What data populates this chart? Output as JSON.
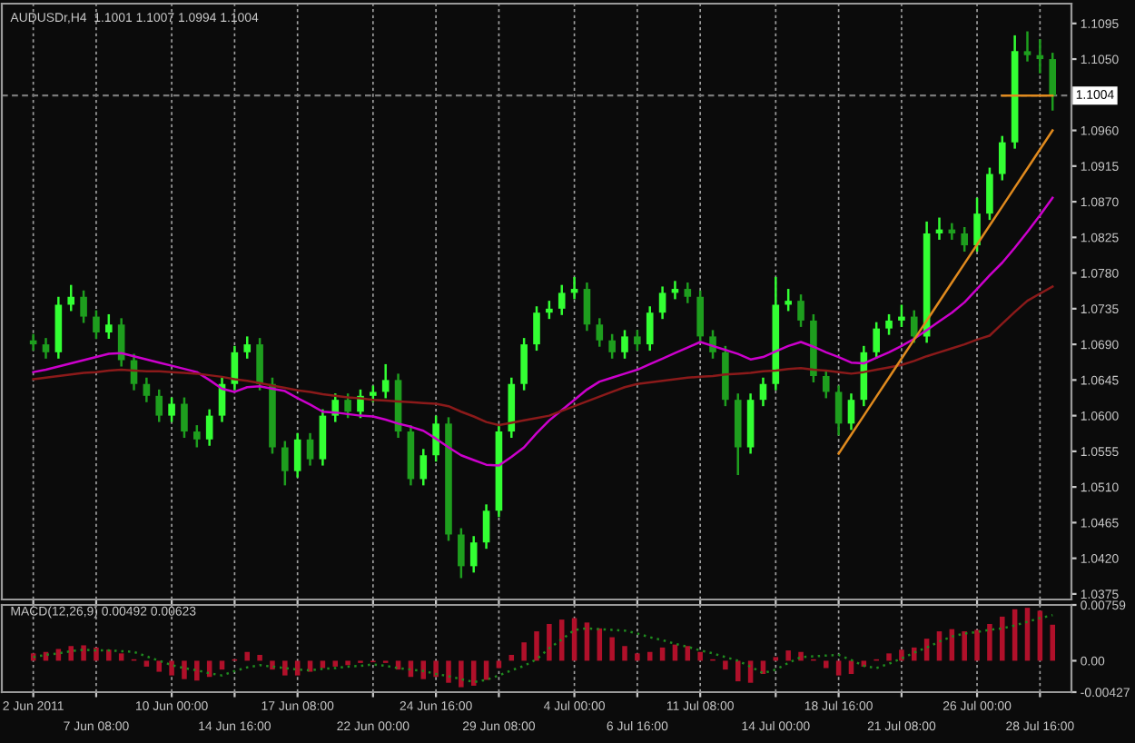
{
  "chart_data": [
    {
      "type": "candlestick",
      "title": "AUDUSDr,H4  1.1001 1.1007 1.0994 1.1004",
      "categories": [
        null,
        null,
        null,
        null,
        null,
        null,
        null,
        null,
        null,
        null,
        null,
        null,
        null,
        null,
        null,
        null,
        null,
        null,
        null,
        null,
        null,
        null,
        null,
        null,
        null,
        null,
        null,
        null,
        null,
        null,
        null,
        null,
        null,
        null,
        null,
        null,
        null,
        null,
        null,
        null,
        null,
        null,
        null,
        null,
        null,
        null,
        null,
        null,
        null,
        null,
        null,
        null,
        null,
        null,
        null,
        null,
        null,
        null,
        null,
        null,
        null,
        null,
        null,
        null,
        null,
        null,
        null,
        null,
        null,
        null,
        null,
        null,
        null,
        null,
        null,
        null,
        null,
        null,
        null,
        null,
        null,
        null
      ],
      "ohlc": [
        [
          1.0695,
          1.0703,
          1.0682,
          1.069
        ],
        [
          1.069,
          1.0698,
          1.0672,
          1.068
        ],
        [
          1.068,
          1.075,
          1.0672,
          1.074
        ],
        [
          1.074,
          1.0765,
          1.0732,
          1.075
        ],
        [
          1.075,
          1.0758,
          1.0717,
          1.0725
        ],
        [
          1.0725,
          1.0733,
          1.0697,
          1.0705
        ],
        [
          1.0705,
          1.0728,
          1.0697,
          1.0715
        ],
        [
          1.0715,
          1.0723,
          1.0662,
          1.067
        ],
        [
          1.067,
          1.0678,
          1.0632,
          1.064
        ],
        [
          1.064,
          1.0648,
          1.0617,
          1.0625
        ],
        [
          1.0625,
          1.0633,
          1.0592,
          1.06
        ],
        [
          1.06,
          1.0623,
          1.0592,
          1.0615
        ],
        [
          1.0615,
          1.0623,
          1.0572,
          1.058
        ],
        [
          1.058,
          1.0588,
          1.056,
          1.057
        ],
        [
          1.057,
          1.0608,
          1.0562,
          1.06
        ],
        [
          1.06,
          1.0648,
          1.0592,
          1.064
        ],
        [
          1.064,
          1.0688,
          1.0632,
          1.068
        ],
        [
          1.068,
          1.07,
          1.0672,
          1.069
        ],
        [
          1.069,
          1.0698,
          1.0632,
          1.064
        ],
        [
          1.064,
          1.0648,
          1.0552,
          1.056
        ],
        [
          1.056,
          1.0568,
          1.0512,
          1.053
        ],
        [
          1.053,
          1.0578,
          1.0522,
          1.057
        ],
        [
          1.057,
          1.0578,
          1.0537,
          1.0545
        ],
        [
          1.0545,
          1.0608,
          1.0537,
          1.06
        ],
        [
          1.06,
          1.0628,
          1.0592,
          1.062
        ],
        [
          1.062,
          1.0628,
          1.0597,
          1.0605
        ],
        [
          1.0605,
          1.0633,
          1.0597,
          1.0625
        ],
        [
          1.0625,
          1.0638,
          1.0617,
          1.063
        ],
        [
          1.063,
          1.0665,
          1.0622,
          1.0645
        ],
        [
          1.0645,
          1.0653,
          1.0572,
          1.058
        ],
        [
          1.058,
          1.0588,
          1.0512,
          1.052
        ],
        [
          1.052,
          1.0558,
          1.0512,
          1.055
        ],
        [
          1.055,
          1.06,
          1.0542,
          1.059
        ],
        [
          1.059,
          1.0598,
          1.0442,
          1.045
        ],
        [
          1.045,
          1.0458,
          1.0395,
          1.041
        ],
        [
          1.041,
          1.0448,
          1.0402,
          1.044
        ],
        [
          1.044,
          1.0488,
          1.0432,
          1.048
        ],
        [
          1.048,
          1.0588,
          1.0472,
          1.058
        ],
        [
          1.058,
          1.0648,
          1.0572,
          1.064
        ],
        [
          1.064,
          1.0698,
          1.0632,
          1.069
        ],
        [
          1.069,
          1.0738,
          1.0682,
          1.073
        ],
        [
          1.073,
          1.0745,
          1.0722,
          1.0735
        ],
        [
          1.0735,
          1.0765,
          1.0727,
          1.0755
        ],
        [
          1.0755,
          1.0775,
          1.0747,
          1.076
        ],
        [
          1.076,
          1.0768,
          1.0707,
          1.0715
        ],
        [
          1.0715,
          1.0723,
          1.0687,
          1.0695
        ],
        [
          1.0695,
          1.0703,
          1.0672,
          1.068
        ],
        [
          1.068,
          1.0708,
          1.0672,
          1.07
        ],
        [
          1.07,
          1.0708,
          1.0682,
          1.069
        ],
        [
          1.069,
          1.0738,
          1.0682,
          1.073
        ],
        [
          1.073,
          1.0763,
          1.0722,
          1.0755
        ],
        [
          1.0755,
          1.077,
          1.0747,
          1.076
        ],
        [
          1.076,
          1.0768,
          1.0742,
          1.075
        ],
        [
          1.075,
          1.0758,
          1.0692,
          1.07
        ],
        [
          1.07,
          1.0708,
          1.0672,
          1.068
        ],
        [
          1.068,
          1.0688,
          1.0612,
          1.062
        ],
        [
          1.062,
          1.0628,
          1.0525,
          1.056
        ],
        [
          1.056,
          1.0628,
          1.0552,
          1.062
        ],
        [
          1.062,
          1.0648,
          1.0612,
          1.064
        ],
        [
          1.064,
          1.0775,
          1.0632,
          1.074
        ],
        [
          1.074,
          1.076,
          1.0732,
          1.0745
        ],
        [
          1.0745,
          1.0753,
          1.0712,
          1.072
        ],
        [
          1.072,
          1.0728,
          1.0642,
          1.065
        ],
        [
          1.065,
          1.0658,
          1.0622,
          1.063
        ],
        [
          1.063,
          1.0638,
          1.0575,
          1.059
        ],
        [
          1.059,
          1.0628,
          1.0582,
          1.062
        ],
        [
          1.062,
          1.0688,
          1.0612,
          1.068
        ],
        [
          1.068,
          1.0718,
          1.0672,
          1.071
        ],
        [
          1.071,
          1.0728,
          1.0702,
          1.072
        ],
        [
          1.072,
          1.074,
          1.0712,
          1.0725
        ],
        [
          1.0725,
          1.0733,
          1.0692,
          1.07
        ],
        [
          1.07,
          1.0845,
          1.0692,
          1.083
        ],
        [
          1.083,
          1.085,
          1.0822,
          1.0835
        ],
        [
          1.0835,
          1.0843,
          1.0822,
          1.083
        ],
        [
          1.083,
          1.0838,
          1.0807,
          1.0815
        ],
        [
          1.0815,
          1.0875,
          1.0807,
          1.0855
        ],
        [
          1.0855,
          1.0913,
          1.0847,
          1.0905
        ],
        [
          1.0905,
          1.0953,
          1.0897,
          1.0945
        ],
        [
          1.0945,
          1.108,
          1.0937,
          1.106
        ],
        [
          1.106,
          1.1085,
          1.1047,
          1.1055
        ],
        [
          1.1055,
          1.1075,
          1.1032,
          1.105
        ],
        [
          1.105,
          1.1058,
          1.0985,
          1.1004
        ]
      ],
      "colors": [
        "#1e9e1e",
        "#1e9e1e",
        "#33ff33",
        "#33ff33",
        "#1e9e1e",
        "#1e9e1e",
        "#33ff33",
        "#1e9e1e",
        "#1e9e1e",
        "#1e9e1e",
        "#1e9e1e",
        "#33ff33",
        "#1e9e1e",
        "#1e9e1e",
        "#33ff33",
        "#33ff33",
        "#33ff33",
        "#33ff33",
        "#1e9e1e",
        "#1e9e1e",
        "#1e9e1e",
        "#33ff33",
        "#1e9e1e",
        "#33ff33",
        "#33ff33",
        "#1e9e1e",
        "#33ff33",
        "#33ff33",
        "#33ff33",
        "#1e9e1e",
        "#1e9e1e",
        "#33ff33",
        "#33ff33",
        "#1e9e1e",
        "#1e9e1e",
        "#33ff33",
        "#33ff33",
        "#33ff33",
        "#33ff33",
        "#33ff33",
        "#33ff33",
        "#33ff33",
        "#33ff33",
        "#33ff33",
        "#1e9e1e",
        "#1e9e1e",
        "#1e9e1e",
        "#33ff33",
        "#1e9e1e",
        "#33ff33",
        "#33ff33",
        "#33ff33",
        "#1e9e1e",
        "#1e9e1e",
        "#1e9e1e",
        "#1e9e1e",
        "#1e9e1e",
        "#33ff33",
        "#33ff33",
        "#33ff33",
        "#33ff33",
        "#1e9e1e",
        "#1e9e1e",
        "#1e9e1e",
        "#1e9e1e",
        "#33ff33",
        "#33ff33",
        "#33ff33",
        "#33ff33",
        "#33ff33",
        "#1e9e1e",
        "#33ff33",
        "#33ff33",
        "#1e9e1e",
        "#1e9e1e",
        "#33ff33",
        "#33ff33",
        "#33ff33",
        "#33ff33",
        "#1e9e1e",
        "#1e9e1e",
        "#1e9e1e"
      ],
      "series": [
        {
          "type": "line",
          "color": "#cc00cc",
          "values": [
            1.0655,
            1.0658,
            1.0662,
            1.0666,
            1.067,
            1.0674,
            1.0678,
            1.0679,
            1.0675,
            1.0671,
            1.0667,
            1.0663,
            1.0659,
            1.0655,
            1.0645,
            1.0634,
            1.063,
            1.0636,
            1.0637,
            1.0634,
            1.0631,
            1.0622,
            1.0614,
            1.0605,
            1.0604,
            1.0602,
            1.06,
            1.0599,
            1.0595,
            1.059,
            1.0586,
            1.0581,
            1.0571,
            1.056,
            1.055,
            1.0544,
            1.0538,
            1.0537,
            1.0548,
            1.056,
            1.0578,
            1.0594,
            1.0607,
            1.062,
            1.0633,
            1.0643,
            1.0648,
            1.0653,
            1.0658,
            1.0665,
            1.0672,
            1.0679,
            1.0686,
            1.0693,
            1.0688,
            1.0683,
            1.0678,
            1.0671,
            1.0674,
            1.0681,
            1.0688,
            1.0693,
            1.0687,
            1.068,
            1.0674,
            1.0667,
            1.0666,
            1.0673,
            1.068,
            1.0688,
            1.0697,
            1.0708,
            1.0719,
            1.073,
            1.0743,
            1.076,
            1.0777,
            1.0793,
            1.0812,
            1.0832,
            1.0853,
            1.0875
          ]
        },
        {
          "type": "line",
          "color": "#8b1a1a",
          "values": [
            1.0646,
            1.0648,
            1.065,
            1.0652,
            1.0654,
            1.0655,
            1.0657,
            1.0658,
            1.0657,
            1.0656,
            1.0656,
            1.0655,
            1.0654,
            1.0653,
            1.0651,
            1.0649,
            1.0646,
            1.0644,
            1.0641,
            1.0638,
            1.0635,
            1.0632,
            1.063,
            1.0627,
            1.0625,
            1.0623,
            1.0622,
            1.062,
            1.0619,
            1.0618,
            1.0617,
            1.0616,
            1.0615,
            1.0612,
            1.0605,
            1.0599,
            1.0592,
            1.0588,
            1.0591,
            1.0594,
            1.0597,
            1.06,
            1.0606,
            1.0612,
            1.0618,
            1.0624,
            1.063,
            1.0636,
            1.064,
            1.0642,
            1.0644,
            1.0646,
            1.0648,
            1.0649,
            1.065,
            1.0652,
            1.0653,
            1.0654,
            1.0656,
            1.0657,
            1.0659,
            1.066,
            1.0658,
            1.0657,
            1.0655,
            1.0653,
            1.0655,
            1.0658,
            1.0661,
            1.0664,
            1.0669,
            1.0675,
            1.068,
            1.0685,
            1.069,
            1.0696,
            1.0701,
            1.0716,
            1.0731,
            1.0745,
            1.0754,
            1.0763
          ]
        },
        {
          "type": "line",
          "color": "#e08a1e",
          "values": [
            null,
            null,
            null,
            null,
            null,
            null,
            null,
            null,
            null,
            null,
            null,
            null,
            null,
            null,
            null,
            null,
            null,
            null,
            null,
            null,
            null,
            null,
            null,
            null,
            null,
            null,
            null,
            null,
            null,
            null,
            null,
            null,
            null,
            null,
            null,
            null,
            null,
            null,
            null,
            null,
            null,
            null,
            null,
            null,
            null,
            null,
            null,
            null,
            null,
            null,
            null,
            null,
            null,
            null,
            null,
            null,
            null,
            null,
            null,
            null,
            null,
            null,
            null,
            null,
            1.0552,
            1.0576,
            1.06,
            1.0624,
            1.0648,
            1.0672,
            1.0696,
            1.072,
            1.0744,
            1.0768,
            1.0792,
            1.0816,
            1.084,
            1.0864,
            1.0888,
            1.0912,
            1.0936,
            1.096
          ]
        },
        {
          "type": "line",
          "color": "#e08a1e",
          "values": [
            null,
            null,
            null,
            null,
            null,
            null,
            null,
            null,
            null,
            null,
            null,
            null,
            null,
            null,
            null,
            null,
            null,
            null,
            null,
            null,
            null,
            null,
            null,
            null,
            null,
            null,
            null,
            null,
            null,
            null,
            null,
            null,
            null,
            null,
            null,
            null,
            null,
            null,
            null,
            null,
            null,
            null,
            null,
            null,
            null,
            null,
            null,
            null,
            null,
            null,
            null,
            null,
            null,
            null,
            null,
            null,
            null,
            null,
            null,
            null,
            null,
            null,
            null,
            null,
            null,
            null,
            null,
            null,
            null,
            null,
            null,
            null,
            null,
            null,
            null,
            null,
            null,
            1.1004,
            1.1004,
            1.1004,
            1.1004,
            1.1004
          ]
        }
      ],
      "ref_lines": [
        {
          "axis": "y",
          "value": 1.1004,
          "label": "1.1004",
          "color": "#7a7a7a",
          "line_style": "dashed"
        }
      ],
      "ylim": [
        1.0368,
        1.112
      ],
      "yticks": [
        {
          "value": 1.1095,
          "label": "1.1095"
        },
        {
          "value": 1.105,
          "label": "1.1050"
        },
        {
          "value": 1.096,
          "label": "1.0960"
        },
        {
          "value": 1.0915,
          "label": "1.0915"
        },
        {
          "value": 1.087,
          "label": "1.0870"
        },
        {
          "value": 1.0825,
          "label": "1.0825"
        },
        {
          "value": 1.078,
          "label": "1.0780"
        },
        {
          "value": 1.0735,
          "label": "1.0735"
        },
        {
          "value": 1.069,
          "label": "1.0690"
        },
        {
          "value": 1.0645,
          "label": "1.0645"
        },
        {
          "value": 1.06,
          "label": "1.0600"
        },
        {
          "value": 1.0555,
          "label": "1.0555"
        },
        {
          "value": 1.051,
          "label": "1.0510"
        },
        {
          "value": 1.0465,
          "label": "1.0465"
        },
        {
          "value": 1.042,
          "label": "1.0420"
        },
        {
          "value": 1.0375,
          "label": "1.0375"
        }
      ],
      "tick_labels": "y",
      "grid": "x"
    },
    {
      "type": "bar",
      "title": "MACD(12,26,9) 0.00492 0.00623",
      "categories": [
        "2 Jun 2011",
        null,
        null,
        null,
        null,
        "7 Jun 08:00",
        null,
        null,
        null,
        null,
        null,
        "10 Jun 00:00",
        null,
        null,
        null,
        null,
        "14 Jun 16:00",
        null,
        null,
        null,
        null,
        "17 Jun 08:00",
        null,
        null,
        null,
        null,
        null,
        "22 Jun 00:00",
        null,
        null,
        null,
        null,
        "24 Jun 16:00",
        null,
        null,
        null,
        null,
        "29 Jun 08:00",
        null,
        null,
        null,
        null,
        null,
        "4 Jul 00:00",
        null,
        null,
        null,
        null,
        "6 Jul 16:00",
        null,
        null,
        null,
        null,
        "11 Jul 08:00",
        null,
        null,
        null,
        null,
        null,
        "14 Jul 00:00",
        null,
        null,
        null,
        null,
        "18 Jul 16:00",
        null,
        null,
        null,
        null,
        "21 Jul 08:00",
        null,
        null,
        null,
        null,
        null,
        "26 Jul 00:00",
        null,
        null,
        null,
        null,
        "28 Jul 16:00",
        null
      ],
      "series": [
        {
          "type": "bar",
          "color": "#b0102a",
          "values": [
            0.001,
            0.0012,
            0.0016,
            0.002,
            0.0021,
            0.0018,
            0.0015,
            0.001,
            0.0002,
            -0.0008,
            -0.0015,
            -0.002,
            -0.0025,
            -0.0027,
            -0.0022,
            -0.0012,
            0.0002,
            0.0012,
            0.0008,
            -0.0012,
            -0.002,
            -0.002,
            -0.0015,
            -0.001,
            -0.0008,
            -0.0006,
            -0.0003,
            -0.0002,
            -0.0003,
            -0.0012,
            -0.0022,
            -0.0025,
            -0.0022,
            -0.003,
            -0.0036,
            -0.0034,
            -0.0026,
            -0.001,
            0.0008,
            0.0025,
            0.004,
            0.005,
            0.0056,
            0.0058,
            0.0052,
            0.0044,
            0.0032,
            0.002,
            0.001,
            0.0012,
            0.0018,
            0.0022,
            0.002,
            0.0012,
            0.0002,
            -0.0012,
            -0.0028,
            -0.003,
            -0.0018,
            0.0005,
            0.0014,
            0.0012,
            0.0002,
            -0.001,
            -0.002,
            -0.0018,
            -0.0008,
            0.0002,
            0.001,
            0.0015,
            0.0018,
            0.003,
            0.004,
            0.0043,
            0.004,
            0.0042,
            0.005,
            0.006,
            0.007,
            0.0072,
            0.0068,
            0.0049
          ]
        },
        {
          "type": "line",
          "color": "#1f8a1f",
          "line_style": "dotted",
          "values": [
            0.0005,
            0.0008,
            0.001,
            0.0013,
            0.0015,
            0.0014,
            0.0014,
            0.0013,
            0.0012,
            0.0006,
            0.0,
            -0.0006,
            -0.001,
            -0.0013,
            -0.0017,
            -0.002,
            -0.0014,
            -0.0009,
            -0.0006,
            -0.0008,
            -0.001,
            -0.0012,
            -0.0013,
            -0.0011,
            -0.001,
            -0.0008,
            -0.0007,
            -0.0005,
            -0.0007,
            -0.001,
            -0.0012,
            -0.0014,
            -0.0018,
            -0.0021,
            -0.0025,
            -0.0029,
            -0.0026,
            -0.002,
            -0.0013,
            -0.0007,
            0.0002,
            0.0017,
            0.0029,
            0.0042,
            0.0044,
            0.0043,
            0.0042,
            0.0041,
            0.0037,
            0.0032,
            0.0028,
            0.0023,
            0.0019,
            0.0014,
            0.001,
            0.0005,
            0.0,
            -0.0008,
            -0.0017,
            -0.0012,
            -0.0003,
            0.0005,
            0.0006,
            0.0007,
            0.0008,
            0.0001,
            -0.0007,
            -0.001,
            -0.0004,
            0.0003,
            0.0011,
            0.0018,
            0.0026,
            0.0033,
            0.0037,
            0.0039,
            0.0042,
            0.0044,
            0.0048,
            0.0053,
            0.0058,
            0.0062
          ]
        }
      ],
      "ylim": [
        -0.00427,
        0.00759
      ],
      "yticks": [
        {
          "value": 0.00759,
          "label": "0.00759"
        },
        {
          "value": 0,
          "label": "0.00"
        },
        {
          "value": -0.00427,
          "label": "-0.00427"
        }
      ],
      "grid": "x"
    }
  ]
}
